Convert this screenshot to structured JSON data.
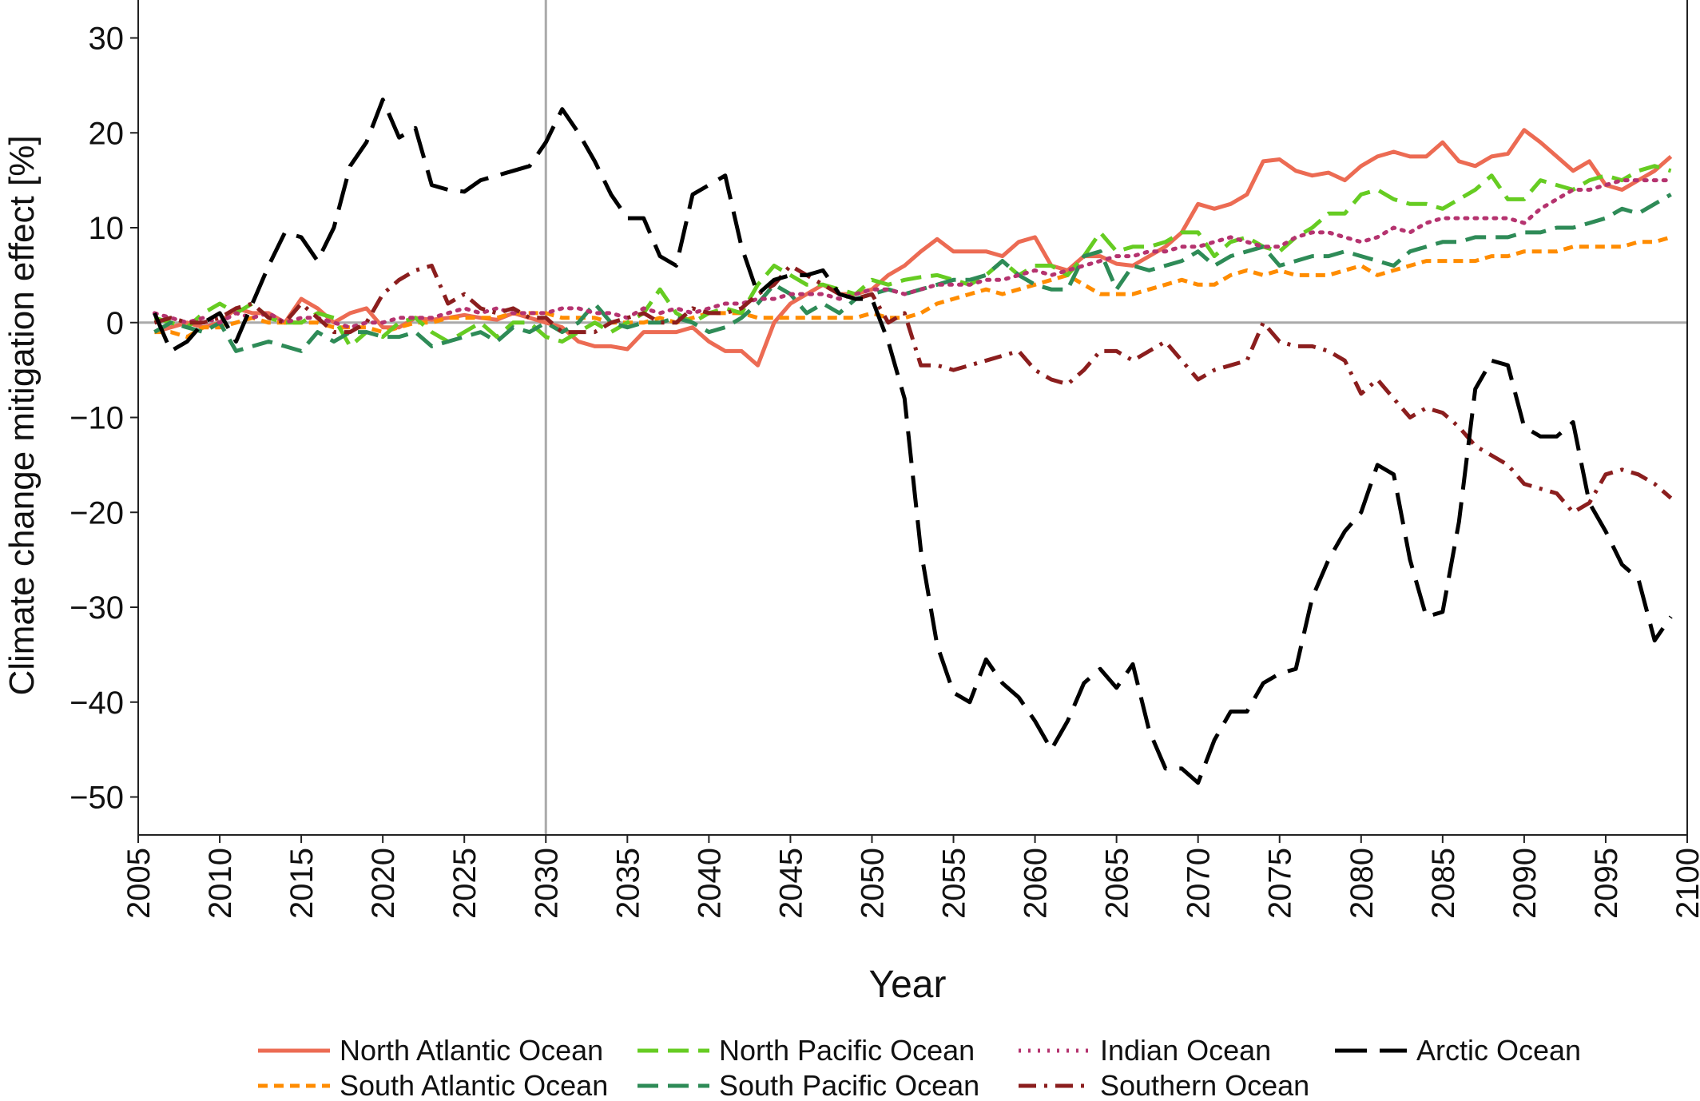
{
  "chart_data": {
    "type": "line",
    "xlabel": "Year",
    "ylabel": "Climate change mitigation effect [%]",
    "x": [
      2006,
      2007,
      2008,
      2009,
      2010,
      2011,
      2012,
      2013,
      2014,
      2015,
      2016,
      2017,
      2018,
      2019,
      2020,
      2021,
      2022,
      2023,
      2024,
      2025,
      2026,
      2027,
      2028,
      2029,
      2030,
      2031,
      2032,
      2033,
      2034,
      2035,
      2036,
      2037,
      2038,
      2039,
      2040,
      2041,
      2042,
      2043,
      2044,
      2045,
      2046,
      2047,
      2048,
      2049,
      2050,
      2051,
      2052,
      2053,
      2054,
      2055,
      2056,
      2057,
      2058,
      2059,
      2060,
      2061,
      2062,
      2063,
      2064,
      2065,
      2066,
      2067,
      2068,
      2069,
      2070,
      2071,
      2072,
      2073,
      2074,
      2075,
      2076,
      2077,
      2078,
      2079,
      2080,
      2081,
      2082,
      2083,
      2084,
      2085,
      2086,
      2087,
      2088,
      2089,
      2090,
      2091,
      2092,
      2093,
      2094,
      2095,
      2096,
      2097,
      2098,
      2099
    ],
    "xlim": [
      2005,
      2100
    ],
    "xticks": [
      2005,
      2010,
      2015,
      2020,
      2025,
      2030,
      2035,
      2040,
      2045,
      2050,
      2055,
      2060,
      2065,
      2070,
      2075,
      2080,
      2085,
      2090,
      2095,
      2100
    ],
    "ylim": [
      -54,
      34
    ],
    "yticks": [
      {
        "value": -50,
        "label": "−50"
      },
      {
        "value": -40,
        "label": "−40"
      },
      {
        "value": -30,
        "label": "−30"
      },
      {
        "value": -20,
        "label": "−20"
      },
      {
        "value": -10,
        "label": "−10"
      },
      0,
      10,
      20,
      30
    ],
    "vlines": [
      2030
    ],
    "hlines": [
      0
    ],
    "series": [
      {
        "name": "North Atlantic Ocean",
        "color": "#ec6b53",
        "dash": "solid",
        "values": [
          -1,
          -0.5,
          0,
          -0.5,
          0,
          1.5,
          1,
          1,
          0,
          2.5,
          1.5,
          0,
          1,
          1.5,
          -0.5,
          -0.5,
          0.5,
          0.3,
          0.5,
          0.8,
          0.5,
          0.3,
          1,
          0.5,
          0,
          -0.5,
          -2,
          -2.5,
          -2.5,
          -2.8,
          -1,
          -1,
          -1,
          -0.5,
          -2,
          -3,
          -3,
          -4.5,
          0,
          2,
          3,
          4,
          3,
          3,
          3.5,
          5,
          6,
          7.5,
          8.8,
          7.5,
          7.5,
          7.5,
          7,
          8.5,
          9,
          6,
          5.5,
          7,
          7,
          6.2,
          6,
          7,
          8,
          9.5,
          12.5,
          12,
          12.5,
          13.5,
          17,
          17.2,
          16,
          15.5,
          15.8,
          15,
          16.5,
          17.5,
          18,
          17.5,
          17.5,
          19,
          17,
          16.5,
          17.5,
          17.8,
          20.3,
          19,
          17.5,
          16,
          17,
          14.5,
          14,
          15,
          16,
          17.5
        ]
      },
      {
        "name": "South Atlantic Ocean",
        "color": "#ff8c00",
        "dash": "short-dashed",
        "values": [
          -1,
          -1,
          -1.5,
          -0.5,
          -0.5,
          0,
          0.5,
          0,
          0,
          0,
          0,
          -0.5,
          -0.5,
          -0.5,
          -1,
          -0.5,
          0,
          0,
          0.5,
          0.5,
          0.5,
          0.5,
          1,
          1,
          1,
          0.5,
          0.5,
          0.5,
          0,
          0,
          0,
          0.5,
          0,
          0.5,
          1,
          1,
          1,
          0.5,
          0.5,
          0.5,
          0.5,
          0.5,
          0.5,
          0.5,
          1,
          0.5,
          0.5,
          1,
          2,
          2.5,
          3,
          3.5,
          3,
          3.5,
          4,
          4.5,
          5,
          4,
          3,
          3,
          3,
          3.5,
          4,
          4.5,
          4,
          4,
          5,
          5.5,
          5,
          5.5,
          5,
          5,
          5,
          5.5,
          6,
          5,
          5.5,
          6,
          6.5,
          6.5,
          6.5,
          6.5,
          7,
          7,
          7.5,
          7.5,
          7.5,
          8,
          8,
          8,
          8,
          8.5,
          8.5,
          9
        ]
      },
      {
        "name": "North Pacific Ocean",
        "color": "#66cc22",
        "dash": "dashed",
        "values": [
          0.5,
          0,
          -0.5,
          1,
          2,
          1,
          2,
          0.5,
          0,
          0,
          1,
          0.5,
          -2.5,
          -1,
          -1.5,
          0,
          0.5,
          -1,
          -2,
          -1,
          0,
          -1.5,
          0,
          0,
          -1.5,
          -2,
          -1,
          0,
          -1,
          0,
          1,
          3.5,
          1,
          0,
          1,
          1.5,
          1,
          4,
          6,
          5,
          4,
          4,
          3.5,
          3,
          4.5,
          4,
          4.5,
          4.8,
          5,
          4.5,
          4,
          5,
          6.5,
          5,
          6,
          6,
          5,
          7,
          9.5,
          7.5,
          8,
          8,
          8.5,
          9.5,
          9.5,
          7,
          8.5,
          9,
          8,
          7.5,
          9,
          10,
          11.5,
          11.5,
          13.5,
          14,
          13,
          12.5,
          12.5,
          12,
          13,
          14,
          15.5,
          13,
          13,
          15,
          14.5,
          14,
          15,
          15.5,
          15,
          16,
          16.5,
          16
        ]
      },
      {
        "name": "South Pacific Ocean",
        "color": "#2e8b57",
        "dash": "dashed",
        "values": [
          -1,
          0,
          -0.5,
          -1,
          0,
          -3,
          -2.5,
          -2,
          -2.5,
          -3,
          -1,
          -2,
          -1,
          -1,
          -1.5,
          -1.5,
          -1,
          -2.5,
          -2,
          -1.5,
          -1,
          -2,
          -0.5,
          -1,
          0,
          -1,
          0,
          2,
          0,
          -0.5,
          0,
          0,
          0.5,
          0,
          -1,
          -0.5,
          0.5,
          2,
          4,
          3,
          1,
          2,
          1,
          2.5,
          3,
          3.5,
          3,
          3.5,
          4,
          4.5,
          4.5,
          5,
          6.5,
          5,
          4,
          3.5,
          3.5,
          7,
          7.5,
          3.5,
          6,
          5.5,
          6,
          6.5,
          7.5,
          6,
          7,
          7.5,
          8,
          6,
          6.5,
          7,
          7,
          7.5,
          7,
          6.5,
          6,
          7.5,
          8,
          8.5,
          8.5,
          9,
          9,
          9,
          9.5,
          9.5,
          10,
          10,
          10.5,
          11,
          12,
          11.5,
          12.5,
          13.5
        ]
      },
      {
        "name": "Indian Ocean",
        "color": "#b5336f",
        "dash": "dotted",
        "values": [
          1,
          0.5,
          0,
          0.5,
          0,
          1,
          0.5,
          1,
          0,
          0.5,
          0.5,
          0,
          -0.5,
          0,
          0,
          0.5,
          0.5,
          0.5,
          1,
          1.5,
          1,
          1.5,
          1,
          1,
          1,
          1.5,
          1.5,
          1,
          1,
          0.5,
          1.5,
          1,
          1.5,
          1,
          1.5,
          2,
          2,
          2.5,
          2.5,
          3,
          3,
          3,
          2.5,
          3,
          3.5,
          3.5,
          3,
          3.5,
          4,
          4,
          4,
          4.5,
          4.5,
          5,
          5.5,
          5,
          5.5,
          6,
          6.5,
          7,
          7,
          7.5,
          7.5,
          8,
          8,
          8.5,
          9,
          8.5,
          8,
          8,
          9,
          9.5,
          9.5,
          9,
          8.5,
          9,
          10,
          9.5,
          10.5,
          11,
          11,
          11,
          11,
          11,
          10.5,
          12,
          13,
          14,
          14,
          14.5,
          15,
          15,
          15,
          15
        ]
      },
      {
        "name": "Southern Ocean",
        "color": "#8b1e1e",
        "dash": "dash-dot",
        "values": [
          0,
          0.5,
          0,
          0,
          0.5,
          1.5,
          2,
          0.5,
          0,
          2,
          0.5,
          -1,
          -1,
          0,
          3,
          4.5,
          5.5,
          6,
          2,
          3,
          1.5,
          1,
          1.5,
          0.5,
          0.5,
          -1,
          -1,
          -1,
          0,
          0.5,
          1,
          0,
          0,
          1.5,
          1,
          1,
          1.5,
          3,
          4,
          6,
          5,
          4,
          3,
          2.5,
          3,
          0,
          1,
          -4.5,
          -4.5,
          -5,
          -4.5,
          -4,
          -3.5,
          -3,
          -5,
          -6,
          -6.5,
          -5,
          -3,
          -3,
          -4,
          -3,
          -2,
          -4,
          -6,
          -5,
          -4.5,
          -4,
          0,
          -2,
          -2.5,
          -2.5,
          -3,
          -4,
          -7.5,
          -6,
          -8,
          -10,
          -9,
          -9.5,
          -11,
          -13,
          -14,
          -15,
          -17,
          -17.5,
          -18,
          -20,
          -19,
          -16,
          -15.5,
          -16,
          -17,
          -18.5
        ]
      },
      {
        "name": "Arctic Ocean",
        "color": "#000000",
        "dash": "long-dashed",
        "values": [
          1,
          -3,
          -2,
          0,
          1,
          -2,
          2,
          6,
          9.5,
          9,
          6.5,
          10,
          16.5,
          19,
          23.5,
          19.5,
          20.5,
          14.5,
          14,
          13.8,
          15,
          15.5,
          16,
          16.5,
          19,
          22.5,
          20,
          17,
          13.5,
          11,
          11,
          7,
          6,
          13.5,
          14.5,
          15.5,
          8,
          3,
          4.5,
          5,
          5,
          5.5,
          3,
          2.5,
          2.5,
          -2,
          -8,
          -24,
          -34,
          -39,
          -40,
          -35.5,
          -38,
          -39.5,
          -42,
          -45,
          -42,
          -38,
          -36.5,
          -38.5,
          -36,
          -43,
          -47,
          -47,
          -48.5,
          -44,
          -41,
          -41,
          -38,
          -37,
          -36.5,
          -29,
          -25,
          -22,
          -20,
          -15,
          -16,
          -25,
          -31,
          -30.5,
          -21,
          -7,
          -4,
          -4.5,
          -11,
          -12,
          -12,
          -10.5,
          -19,
          -22,
          -25.5,
          -27,
          -33.5,
          -31
        ]
      }
    ]
  }
}
